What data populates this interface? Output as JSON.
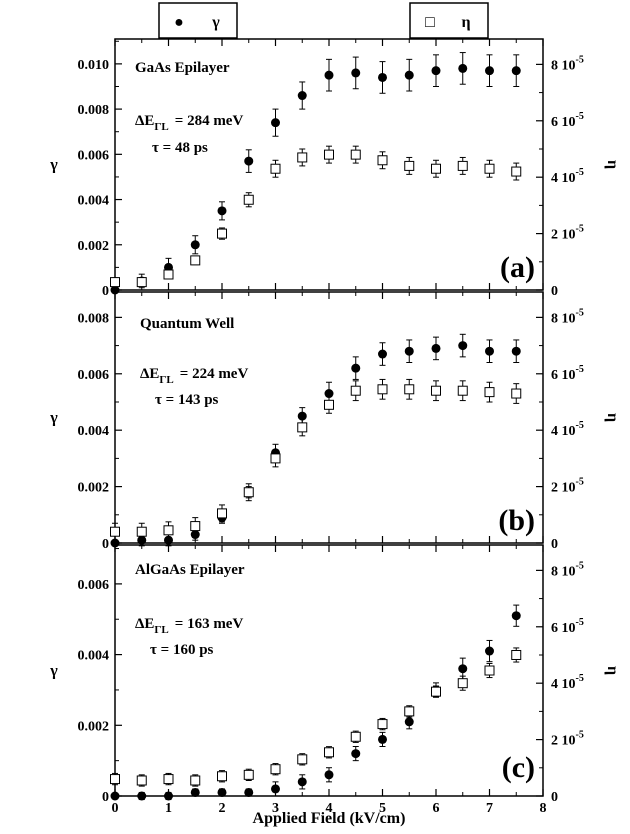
{
  "legend": {
    "gamma": {
      "symbol": "●",
      "label": "γ"
    },
    "eta": {
      "symbol": "□",
      "label": "η"
    }
  },
  "xlabel": "Applied Field (kV/cm)",
  "x_ticks": [
    "0",
    "1",
    "2",
    "3",
    "4",
    "5",
    "6",
    "7",
    "8"
  ],
  "chart_data": [
    {
      "type": "scatter",
      "panel_label": "(a)",
      "title": "GaAs Epilayer",
      "params": {
        "delta_prefix": "ΔE",
        "delta_sub": "ΓL",
        "delta_value": "= 284 meV",
        "tau": "τ = 48 ps"
      },
      "xlim": [
        0,
        8
      ],
      "ylim_left": [
        0,
        0.0111
      ],
      "ylim_right": [
        0,
        8.9e-05
      ],
      "ylabel_left": "γ",
      "ylabel_right": "η",
      "left_ticks": [
        {
          "v": 0,
          "t": "0"
        },
        {
          "v": 0.002,
          "t": "0.002"
        },
        {
          "v": 0.004,
          "t": "0.004"
        },
        {
          "v": 0.006,
          "t": "0.006"
        },
        {
          "v": 0.008,
          "t": "0.008"
        },
        {
          "v": 0.01,
          "t": "0.010"
        }
      ],
      "right_ticks": [
        {
          "v": 0,
          "m": "0",
          "e": ""
        },
        {
          "v": 2e-05,
          "m": "2 10",
          "e": "-5"
        },
        {
          "v": 4e-05,
          "m": "4 10",
          "e": "-5"
        },
        {
          "v": 6e-05,
          "m": "6 10",
          "e": "-5"
        },
        {
          "v": 8e-05,
          "m": "8 10",
          "e": "-5"
        }
      ],
      "series": [
        {
          "key": "gamma",
          "axis": "left",
          "marker": "filled-circle",
          "x": [
            0,
            0.5,
            1,
            1.5,
            2,
            2.5,
            3,
            3.5,
            4,
            4.5,
            5,
            5.5,
            6,
            6.5,
            7,
            7.5
          ],
          "y": [
            0.0,
            0.0004,
            0.001,
            0.002,
            0.0035,
            0.0057,
            0.0074,
            0.0086,
            0.0095,
            0.0096,
            0.0094,
            0.0095,
            0.0097,
            0.0098,
            0.0097,
            0.0097
          ],
          "err": [
            0,
            0.0003,
            0.0004,
            0.0004,
            0.0004,
            0.0005,
            0.0006,
            0.0006,
            0.0007,
            0.0007,
            0.0007,
            0.0007,
            0.0007,
            0.0007,
            0.0007,
            0.0007
          ]
        },
        {
          "key": "eta",
          "axis": "right",
          "marker": "open-square",
          "x": [
            0,
            0.5,
            1,
            1.5,
            2,
            2.5,
            3,
            3.5,
            4,
            4.5,
            5,
            5.5,
            6,
            6.5,
            7,
            7.5
          ],
          "y": [
            2.8e-06,
            2.8e-06,
            5.5e-06,
            1.05e-05,
            2e-05,
            3.2e-05,
            4.3e-05,
            4.7e-05,
            4.8e-05,
            4.8e-05,
            4.6e-05,
            4.4e-05,
            4.3e-05,
            4.4e-05,
            4.3e-05,
            4.2e-05
          ],
          "err": [
            1.5e-06,
            1.5e-06,
            1.5e-06,
            1.5e-06,
            2e-06,
            2.5e-06,
            3e-06,
            3e-06,
            3e-06,
            3e-06,
            3e-06,
            3e-06,
            3e-06,
            3e-06,
            3e-06,
            3e-06
          ]
        }
      ]
    },
    {
      "type": "scatter",
      "panel_label": "(b)",
      "title": "Quantum Well",
      "params": {
        "delta_prefix": "ΔE",
        "delta_sub": "ΓL",
        "delta_value": "= 224 meV",
        "tau": "τ = 143 ps"
      },
      "xlim": [
        0,
        8
      ],
      "ylim_left": [
        0,
        0.0089
      ],
      "ylim_right": [
        0,
        8.9e-05
      ],
      "ylabel_left": "γ",
      "ylabel_right": "η",
      "left_ticks": [
        {
          "v": 0,
          "t": "0"
        },
        {
          "v": 0.002,
          "t": "0.002"
        },
        {
          "v": 0.004,
          "t": "0.004"
        },
        {
          "v": 0.006,
          "t": "0.006"
        },
        {
          "v": 0.008,
          "t": "0.008"
        }
      ],
      "right_ticks": [
        {
          "v": 0,
          "m": "0",
          "e": ""
        },
        {
          "v": 2e-05,
          "m": "2 10",
          "e": "-5"
        },
        {
          "v": 4e-05,
          "m": "4 10",
          "e": "-5"
        },
        {
          "v": 6e-05,
          "m": "6 10",
          "e": "-5"
        },
        {
          "v": 8e-05,
          "m": "8 10",
          "e": "-5"
        }
      ],
      "series": [
        {
          "key": "gamma",
          "axis": "left",
          "marker": "filled-circle",
          "x": [
            0,
            0.5,
            1,
            1.5,
            2,
            2.5,
            3,
            3.5,
            4,
            4.5,
            5,
            5.5,
            6,
            6.5,
            7,
            7.5
          ],
          "y": [
            0.0,
            0.0001,
            0.0001,
            0.0003,
            0.0009,
            0.0018,
            0.0032,
            0.0045,
            0.0053,
            0.0062,
            0.0067,
            0.0068,
            0.0069,
            0.007,
            0.0068,
            0.0068
          ],
          "err": [
            0,
            0.0002,
            0.0002,
            0.0002,
            0.0002,
            0.0002,
            0.0003,
            0.0003,
            0.0004,
            0.0004,
            0.0004,
            0.0004,
            0.0004,
            0.0004,
            0.0004,
            0.0004
          ]
        },
        {
          "key": "eta",
          "axis": "right",
          "marker": "open-square",
          "x": [
            0,
            0.5,
            1,
            1.5,
            2,
            2.5,
            3,
            3.5,
            4,
            4.5,
            5,
            5.5,
            6,
            6.5,
            7,
            7.5
          ],
          "y": [
            4e-06,
            4e-06,
            4.5e-06,
            6e-06,
            1.05e-05,
            1.8e-05,
            3e-05,
            4.1e-05,
            4.9e-05,
            5.4e-05,
            5.45e-05,
            5.45e-05,
            5.4e-05,
            5.4e-05,
            5.35e-05,
            5.3e-05
          ],
          "err": [
            3e-06,
            3e-06,
            3e-06,
            3e-06,
            3e-06,
            3e-06,
            3e-06,
            3e-06,
            3e-06,
            3.5e-06,
            3.5e-06,
            3.5e-06,
            3.5e-06,
            3.5e-06,
            3.5e-06,
            3.5e-06
          ]
        }
      ]
    },
    {
      "type": "scatter",
      "panel_label": "(c)",
      "title": "AlGaAs Epilayer",
      "params": {
        "delta_prefix": "ΔE",
        "delta_sub": "ΓL",
        "delta_value": "= 163 meV",
        "tau": "τ = 160 ps"
      },
      "xlim": [
        0,
        8
      ],
      "ylim_left": [
        0,
        0.0071
      ],
      "ylim_right": [
        0,
        8.9e-05
      ],
      "ylabel_left": "γ",
      "ylabel_right": "η",
      "left_ticks": [
        {
          "v": 0,
          "t": "0"
        },
        {
          "v": 0.002,
          "t": "0.002"
        },
        {
          "v": 0.004,
          "t": "0.004"
        },
        {
          "v": 0.006,
          "t": "0.006"
        }
      ],
      "right_ticks": [
        {
          "v": 0,
          "m": "0",
          "e": ""
        },
        {
          "v": 2e-05,
          "m": "2 10",
          "e": "-5"
        },
        {
          "v": 4e-05,
          "m": "4 10",
          "e": "-5"
        },
        {
          "v": 6e-05,
          "m": "6 10",
          "e": "-5"
        },
        {
          "v": 8e-05,
          "m": "8 10",
          "e": "-5"
        }
      ],
      "series": [
        {
          "key": "gamma",
          "axis": "left",
          "marker": "filled-circle",
          "x": [
            0,
            0.5,
            1,
            1.5,
            2,
            2.5,
            3,
            3.5,
            4,
            4.5,
            5,
            5.5,
            6,
            6.5,
            7,
            7.5
          ],
          "y": [
            0.0,
            0.0,
            0.0,
            0.0001,
            0.0001,
            0.0001,
            0.0002,
            0.0004,
            0.0006,
            0.0012,
            0.0016,
            0.0021,
            0.003,
            0.0036,
            0.0041,
            0.0051
          ],
          "err": [
            0,
            0.0001,
            0.0001,
            0.0001,
            0.0001,
            0.0001,
            0.0002,
            0.0002,
            0.0002,
            0.0002,
            0.0002,
            0.0002,
            0.0002,
            0.0003,
            0.0003,
            0.0003
          ]
        },
        {
          "key": "eta",
          "axis": "right",
          "marker": "open-square",
          "x": [
            0,
            0.5,
            1,
            1.5,
            2,
            2.5,
            3,
            3.5,
            4,
            4.5,
            5,
            5.5,
            6,
            6.5,
            7,
            7.5
          ],
          "y": [
            6e-06,
            5.5e-06,
            6e-06,
            5.5e-06,
            7e-06,
            7.5e-06,
            9.5e-06,
            1.3e-05,
            1.55e-05,
            2.1e-05,
            2.55e-05,
            3e-05,
            3.7e-05,
            4e-05,
            4.45e-05,
            5e-05
          ]
        },
        {
          "key": "eta_err_holder",
          "axis": "none",
          "x": [],
          "y": []
        }
      ],
      "eta_err": [
        2e-06,
        2e-06,
        2e-06,
        2e-06,
        2e-06,
        2e-06,
        2e-06,
        2e-06,
        2e-06,
        2e-06,
        2e-06,
        2e-06,
        2e-06,
        2.5e-06,
        2.5e-06,
        2.5e-06
      ]
    }
  ]
}
